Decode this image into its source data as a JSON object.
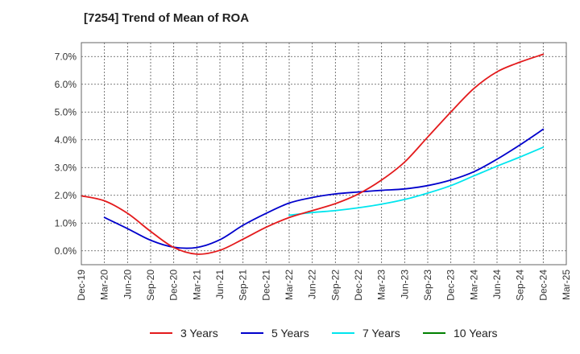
{
  "chart_data": {
    "type": "line",
    "title": "[7254]  Trend of Mean of ROA",
    "xlabel": "",
    "ylabel": "",
    "x_ticks": [
      "Dec-19",
      "Mar-20",
      "Jun-20",
      "Sep-20",
      "Dec-20",
      "Mar-21",
      "Jun-21",
      "Sep-21",
      "Dec-21",
      "Mar-22",
      "Jun-22",
      "Sep-22",
      "Dec-22",
      "Mar-23",
      "Jun-23",
      "Sep-23",
      "Dec-23",
      "Mar-24",
      "Jun-24",
      "Sep-24",
      "Dec-24",
      "Mar-25"
    ],
    "y_ticks": [
      "0.0%",
      "1.0%",
      "2.0%",
      "3.0%",
      "4.0%",
      "5.0%",
      "6.0%",
      "7.0%"
    ],
    "y_tick_values": [
      0,
      1,
      2,
      3,
      4,
      5,
      6,
      7
    ],
    "ylim": [
      -0.5,
      7.5
    ],
    "grid": true,
    "legend_position": "bottom",
    "series": [
      {
        "name": "3 Years",
        "color": "#e31a1c",
        "start_index": 0,
        "values": [
          1.98,
          1.8,
          1.35,
          0.7,
          0.12,
          -0.12,
          0.02,
          0.42,
          0.85,
          1.2,
          1.45,
          1.7,
          2.05,
          2.55,
          3.2,
          4.1,
          5.0,
          5.85,
          6.45,
          6.8,
          7.08
        ]
      },
      {
        "name": "5 Years",
        "color": "#0000cc",
        "start_index": 1,
        "values": [
          1.2,
          0.8,
          0.38,
          0.13,
          0.12,
          0.4,
          0.92,
          1.35,
          1.72,
          1.92,
          2.05,
          2.12,
          2.18,
          2.23,
          2.35,
          2.55,
          2.85,
          3.3,
          3.82,
          4.38
        ]
      },
      {
        "name": "7 Years",
        "color": "#00e5ee",
        "start_index": 9,
        "values": [
          1.28,
          1.38,
          1.45,
          1.55,
          1.68,
          1.85,
          2.08,
          2.35,
          2.7,
          3.05,
          3.38,
          3.73
        ]
      },
      {
        "name": "10 Years",
        "color": "#008000",
        "start_index": 0,
        "values": []
      }
    ]
  }
}
